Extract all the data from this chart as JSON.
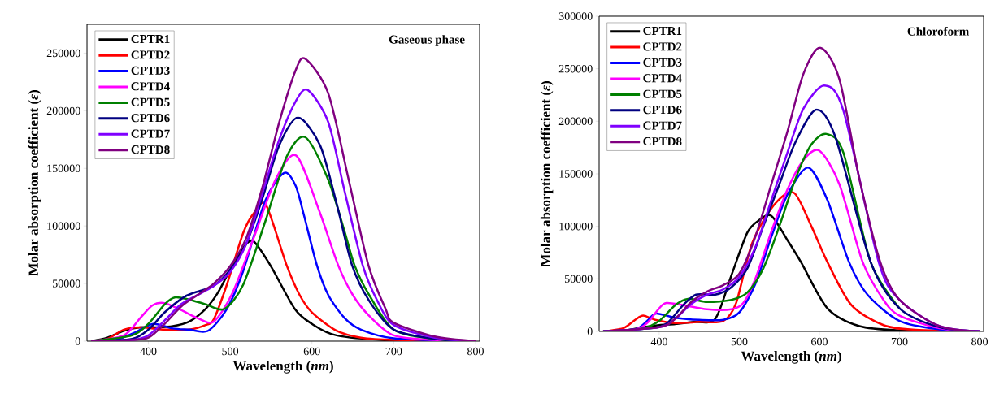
{
  "chart_data": [
    {
      "type": "line",
      "title": "Gaseous phase",
      "xlabel": "Wavelength (*nm*)",
      "ylabel": "Molar absorption coefficient (*ε*)",
      "xlim": [
        325,
        805
      ],
      "ylim": [
        0,
        275000
      ],
      "xticks": [
        400,
        500,
        600,
        700,
        800
      ],
      "yticks": [
        0,
        50000,
        100000,
        150000,
        200000,
        250000
      ],
      "legend": "top left",
      "series": [
        {
          "name": "CPTR1",
          "color": "#000000",
          "x": [
            330,
            350,
            370,
            390,
            410,
            430,
            450,
            470,
            485,
            500,
            515,
            528,
            549,
            579,
            600,
            630,
            700,
            800
          ],
          "values": [
            0,
            3000,
            9000,
            12000,
            12000,
            13000,
            17000,
            28000,
            42000,
            62000,
            80000,
            87000,
            66000,
            28000,
            15000,
            5000,
            500,
            0
          ]
        },
        {
          "name": "CPTD2",
          "color": "#ff0000",
          "x": [
            330,
            350,
            370,
            390,
            420,
            450,
            470,
            480,
            496,
            516,
            530,
            544,
            569,
            585,
            600,
            630,
            660,
            700,
            800
          ],
          "values": [
            0,
            2000,
            10000,
            12000,
            10000,
            10000,
            14000,
            19000,
            49000,
            94000,
            112000,
            118000,
            66000,
            40000,
            25000,
            9000,
            3000,
            1000,
            0
          ]
        },
        {
          "name": "CPTD3",
          "color": "#0000ff",
          "x": [
            330,
            360,
            385,
            406,
            430,
            450,
            473,
            496,
            516,
            543,
            566,
            580,
            590,
            606,
            620,
            640,
            660,
            700,
            800
          ],
          "values": [
            0,
            1000,
            8000,
            15000,
            11000,
            10000,
            9000,
            28000,
            61000,
            122000,
            146000,
            135000,
            110000,
            66000,
            40000,
            20000,
            10000,
            2500,
            0
          ]
        },
        {
          "name": "CPTD4",
          "color": "#ff00ff",
          "x": [
            330,
            370,
            390,
            405,
            420,
            440,
            460,
            480,
            503,
            529,
            556,
            581,
            609,
            632,
            650,
            670,
            700,
            750,
            800
          ],
          "values": [
            0,
            5000,
            20000,
            31000,
            33000,
            27000,
            20000,
            17000,
            42000,
            90000,
            141000,
            161000,
            113000,
            66000,
            40000,
            22000,
            5000,
            1000,
            0
          ]
        },
        {
          "name": "CPTD5",
          "color": "#008000",
          "x": [
            330,
            380,
            400,
            420,
            433,
            450,
            470,
            493,
            516,
            543,
            569,
            592,
            620,
            640,
            652,
            670,
            700,
            750,
            800
          ],
          "values": [
            0,
            5000,
            15000,
            32000,
            38000,
            36000,
            32000,
            28000,
            49000,
            104000,
            160000,
            177000,
            140000,
            95000,
            66000,
            40000,
            10000,
            2000,
            0
          ]
        },
        {
          "name": "CPTD6",
          "color": "#000080",
          "x": [
            330,
            380,
            400,
            420,
            443,
            456,
            480,
            500,
            520,
            540,
            560,
            583,
            610,
            630,
            649,
            670,
            700,
            750,
            800
          ],
          "values": [
            0,
            2000,
            10000,
            25000,
            38000,
            42000,
            48000,
            62000,
            85000,
            125000,
            170000,
            194000,
            170000,
            120000,
            66000,
            35000,
            10000,
            2000,
            0
          ]
        },
        {
          "name": "CPTD7",
          "color": "#8000ff",
          "x": [
            330,
            380,
            400,
            420,
            440,
            460,
            480,
            500,
            520,
            540,
            560,
            580,
            595,
            620,
            640,
            662,
            680,
            700,
            750,
            800
          ],
          "values": [
            0,
            1000,
            5000,
            18000,
            32000,
            40000,
            48000,
            60000,
            85000,
            130000,
            175000,
            208000,
            218000,
            190000,
            130000,
            66000,
            35000,
            14000,
            3000,
            0
          ]
        },
        {
          "name": "CPTD8",
          "color": "#800080",
          "x": [
            330,
            380,
            400,
            420,
            440,
            460,
            480,
            500,
            520,
            540,
            560,
            580,
            592,
            620,
            645,
            669,
            690,
            700,
            750,
            800
          ],
          "values": [
            0,
            1000,
            3000,
            15000,
            30000,
            40000,
            50000,
            65000,
            90000,
            135000,
            190000,
            235000,
            245000,
            215000,
            140000,
            66000,
            28000,
            16000,
            4000,
            0
          ]
        }
      ]
    },
    {
      "type": "line",
      "title": "Chloroform",
      "xlabel": "Wavelength (*nm*)",
      "ylabel": "Molar absorption coefficient (*ε*)",
      "xlim": [
        325,
        805
      ],
      "ylim": [
        0,
        300000
      ],
      "xticks": [
        400,
        500,
        600,
        700,
        800
      ],
      "yticks": [
        0,
        50000,
        100000,
        150000,
        200000,
        250000,
        300000
      ],
      "legend": "top left",
      "series": [
        {
          "name": "CPTR1",
          "color": "#000000",
          "x": [
            330,
            360,
            380,
            400,
            420,
            443,
            470,
            490,
            510,
            525,
            540,
            560,
            577,
            610,
            650,
            700,
            800
          ],
          "values": [
            0,
            1000,
            4000,
            6000,
            7000,
            9000,
            12000,
            53000,
            94000,
            106000,
            110000,
            87000,
            66000,
            22000,
            5000,
            1000,
            0
          ]
        },
        {
          "name": "CPTD2",
          "color": "#ff0000",
          "x": [
            330,
            355,
            370,
            380,
            395,
            420,
            450,
            480,
            496,
            516,
            543,
            568,
            590,
            610,
            640,
            680,
            720,
            800
          ],
          "values": [
            0,
            3000,
            11000,
            15000,
            11000,
            8000,
            9000,
            10000,
            27000,
            84000,
            120000,
            132000,
            100000,
            66000,
            25000,
            6000,
            1500,
            0
          ]
        },
        {
          "name": "CPTD3",
          "color": "#0000ff",
          "x": [
            330,
            370,
            385,
            396,
            420,
            450,
            480,
            500,
            520,
            540,
            560,
            586,
            610,
            637,
            660,
            700,
            750,
            800
          ],
          "values": [
            0,
            2000,
            10000,
            17000,
            13000,
            11000,
            11000,
            18000,
            45000,
            90000,
            130000,
            156000,
            125000,
            66000,
            35000,
            10000,
            2000,
            0
          ]
        },
        {
          "name": "CPTD4",
          "color": "#ff00ff",
          "x": [
            330,
            370,
            385,
            400,
            409,
            430,
            460,
            490,
            505,
            520,
            540,
            560,
            580,
            600,
            625,
            654,
            680,
            700,
            750,
            800
          ],
          "values": [
            0,
            2000,
            8000,
            22000,
            27000,
            25000,
            21000,
            21000,
            27000,
            50000,
            95000,
            135000,
            163000,
            172000,
            140000,
            66000,
            30000,
            15000,
            3000,
            0
          ]
        },
        {
          "name": "CPTD5",
          "color": "#008000",
          "x": [
            330,
            380,
            400,
            420,
            436,
            460,
            490,
            510,
            530,
            550,
            570,
            590,
            609,
            630,
            664,
            700
          ],
          "values": [
            0,
            3000,
            10000,
            25000,
            31000,
            28000,
            30000,
            37000,
            60000,
            100000,
            145000,
            178000,
            188000,
            170000,
            66000,
            22000
          ]
        },
        {
          "name": "CPTD6",
          "color": "#000080",
          "x": [
            330,
            390,
            410,
            430,
            446,
            470,
            490,
            510,
            530,
            550,
            570,
            596,
            620,
            664,
            700,
            750,
            800
          ],
          "values": [
            0,
            3000,
            8000,
            25000,
            35000,
            35000,
            42000,
            60000,
            100000,
            140000,
            180000,
            211000,
            185000,
            66000,
            22000,
            4000,
            0
          ]
        },
        {
          "name": "CPTD7",
          "color": "#8000ff",
          "x": [
            330,
            400,
            420,
            440,
            460,
            480,
            500,
            520,
            540,
            560,
            580,
            606,
            630,
            674,
            700,
            750,
            800
          ],
          "values": [
            0,
            4000,
            12000,
            26000,
            35000,
            40000,
            52000,
            80000,
            125000,
            170000,
            212000,
            234000,
            210000,
            66000,
            30000,
            5000,
            0
          ]
        },
        {
          "name": "CPTD8",
          "color": "#800080",
          "x": [
            330,
            400,
            420,
            440,
            460,
            480,
            500,
            520,
            540,
            560,
            580,
            601,
            625,
            650,
            676,
            700,
            750,
            800
          ],
          "values": [
            0,
            4000,
            12000,
            28000,
            38000,
            44000,
            55000,
            90000,
            140000,
            190000,
            245000,
            270000,
            240000,
            145000,
            66000,
            30000,
            5000,
            0
          ]
        }
      ]
    }
  ]
}
